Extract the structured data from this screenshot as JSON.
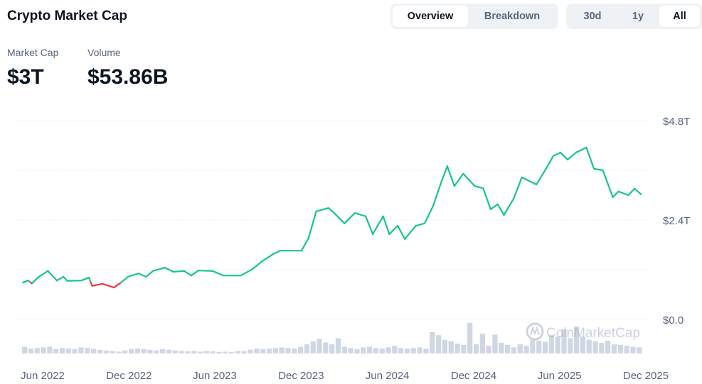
{
  "header": {
    "title": "Crypto Market Cap"
  },
  "view_tabs": [
    {
      "label": "Overview",
      "active": true
    },
    {
      "label": "Breakdown",
      "active": false
    }
  ],
  "range_tabs": [
    {
      "label": "30d",
      "active": false
    },
    {
      "label": "1y",
      "active": false
    },
    {
      "label": "All",
      "active": true
    }
  ],
  "stats": [
    {
      "label": "Market Cap",
      "value": "$3T"
    },
    {
      "label": "Volume",
      "value": "$53.86B"
    }
  ],
  "watermark": "CoinMarketCap",
  "colors": {
    "up": "#16c784",
    "down": "#ea3943",
    "volume": "#cfd6e4",
    "grid": "#e6e9ee"
  },
  "chart_data": {
    "type": "line",
    "y_unit": "trillion USD",
    "ylim": [
      0,
      4.8
    ],
    "y_ticks": [
      {
        "value": 0,
        "label": "$0.0"
      },
      {
        "value": 2.4,
        "label": "$2.4T"
      },
      {
        "value": 4.8,
        "label": "$4.8T"
      }
    ],
    "x_ticks": [
      {
        "date": "2022-06-01",
        "label": "Jun 2022"
      },
      {
        "date": "2022-12-01",
        "label": "Dec 2022"
      },
      {
        "date": "2023-06-01",
        "label": "Jun 2023"
      },
      {
        "date": "2023-12-01",
        "label": "Dec 2023"
      },
      {
        "date": "2024-06-01",
        "label": "Jun 2024"
      },
      {
        "date": "2024-12-01",
        "label": "Dec 2024"
      },
      {
        "date": "2025-06-01",
        "label": "Jun 2025"
      },
      {
        "date": "2025-12-01",
        "label": "Dec 2025"
      }
    ],
    "grid": true,
    "legend": "none",
    "series": [
      {
        "points": [
          [
            "2022-04-20",
            0.89
          ],
          [
            "2022-05-01",
            0.94
          ],
          [
            "2022-05-09",
            0.87
          ],
          [
            "2022-05-24",
            1.03
          ],
          [
            "2022-06-12",
            1.17
          ],
          [
            "2022-07-01",
            0.94
          ],
          [
            "2022-07-15",
            1.03
          ],
          [
            "2022-07-23",
            0.93
          ],
          [
            "2022-08-22",
            0.94
          ],
          [
            "2022-09-07",
            1.01
          ],
          [
            "2022-09-14",
            0.81
          ],
          [
            "2022-10-06",
            0.86
          ],
          [
            "2022-10-30",
            0.77
          ],
          [
            "2022-11-14",
            0.89
          ],
          [
            "2022-11-29",
            1.03
          ],
          [
            "2022-12-21",
            1.11
          ],
          [
            "2023-01-06",
            1.03
          ],
          [
            "2023-01-21",
            1.17
          ],
          [
            "2023-02-15",
            1.25
          ],
          [
            "2023-03-05",
            1.15
          ],
          [
            "2023-03-28",
            1.17
          ],
          [
            "2023-04-12",
            1.06
          ],
          [
            "2023-04-27",
            1.18
          ],
          [
            "2023-05-27",
            1.17
          ],
          [
            "2023-06-19",
            1.06
          ],
          [
            "2023-07-26",
            1.06
          ],
          [
            "2023-08-18",
            1.2
          ],
          [
            "2023-09-10",
            1.41
          ],
          [
            "2023-10-03",
            1.58
          ],
          [
            "2023-10-18",
            1.66
          ],
          [
            "2023-12-02",
            1.66
          ],
          [
            "2023-12-17",
            1.97
          ],
          [
            "2024-01-02",
            2.61
          ],
          [
            "2024-01-28",
            2.69
          ],
          [
            "2024-02-09",
            2.57
          ],
          [
            "2024-03-02",
            2.32
          ],
          [
            "2024-03-24",
            2.57
          ],
          [
            "2024-04-16",
            2.49
          ],
          [
            "2024-05-01",
            2.06
          ],
          [
            "2024-05-23",
            2.49
          ],
          [
            "2024-06-05",
            2.06
          ],
          [
            "2024-06-23",
            2.26
          ],
          [
            "2024-07-08",
            1.94
          ],
          [
            "2024-07-31",
            2.26
          ],
          [
            "2024-08-19",
            2.32
          ],
          [
            "2024-09-06",
            2.74
          ],
          [
            "2024-09-24",
            3.34
          ],
          [
            "2024-10-06",
            3.7
          ],
          [
            "2024-10-21",
            3.22
          ],
          [
            "2024-11-09",
            3.52
          ],
          [
            "2024-12-03",
            3.22
          ],
          [
            "2024-12-21",
            3.17
          ],
          [
            "2025-01-06",
            2.66
          ],
          [
            "2025-01-21",
            2.78
          ],
          [
            "2025-02-03",
            2.52
          ],
          [
            "2025-02-24",
            2.92
          ],
          [
            "2025-03-13",
            3.43
          ],
          [
            "2025-04-13",
            3.26
          ],
          [
            "2025-05-04",
            3.65
          ],
          [
            "2025-05-19",
            3.95
          ],
          [
            "2025-06-03",
            4.03
          ],
          [
            "2025-06-18",
            3.86
          ],
          [
            "2025-07-06",
            4.03
          ],
          [
            "2025-07-28",
            4.15
          ],
          [
            "2025-08-13",
            3.64
          ],
          [
            "2025-09-01",
            3.6
          ],
          [
            "2025-09-22",
            2.95
          ],
          [
            "2025-10-04",
            3.09
          ],
          [
            "2025-10-25",
            3.0
          ],
          [
            "2025-11-07",
            3.16
          ],
          [
            "2025-11-21",
            3.02
          ]
        ]
      }
    ],
    "volume_relative_percent": [
      22,
      16,
      18,
      20,
      22,
      15,
      18,
      16,
      14,
      20,
      18,
      15,
      12,
      10,
      8,
      6,
      10,
      14,
      16,
      14,
      12,
      10,
      14,
      12,
      10,
      8,
      7,
      8,
      6,
      8,
      7,
      5,
      6,
      5,
      8,
      8,
      12,
      16,
      14,
      16,
      18,
      20,
      18,
      16,
      22,
      30,
      40,
      48,
      36,
      30,
      50,
      22,
      18,
      14,
      20,
      22,
      18,
      16,
      20,
      25,
      18,
      16,
      18,
      20,
      15,
      70,
      60,
      45,
      40,
      32,
      28,
      100,
      30,
      65,
      25,
      62,
      35,
      28,
      20,
      30,
      25,
      45,
      42,
      38,
      60,
      55,
      80,
      50,
      88,
      55,
      45,
      40,
      35,
      42,
      30,
      28,
      25,
      22,
      20
    ]
  }
}
